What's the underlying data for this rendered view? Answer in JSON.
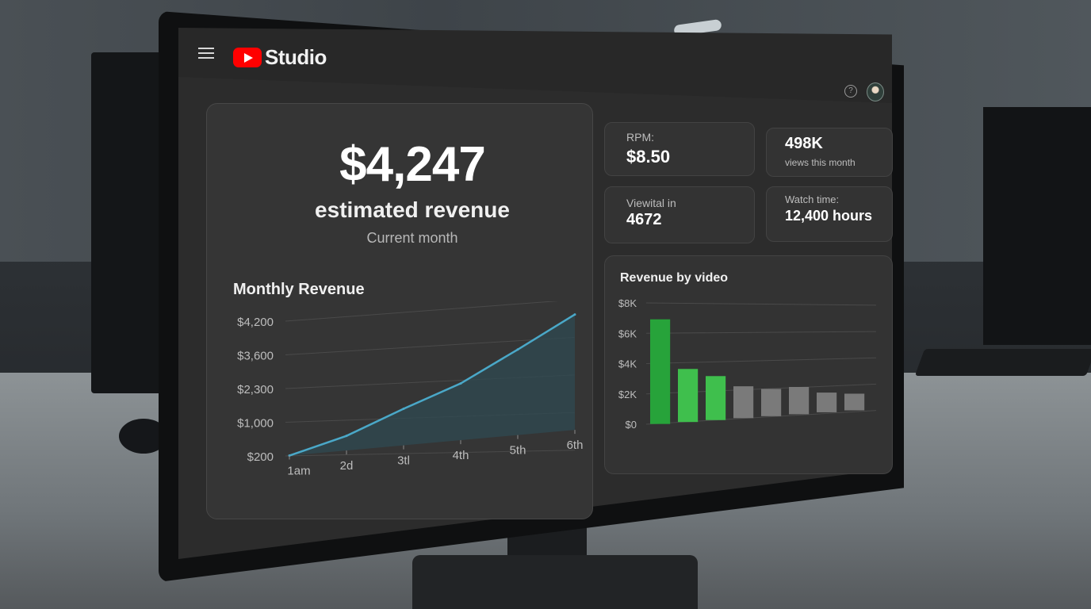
{
  "header": {
    "logo_text": "Studio",
    "menu_icon": "hamburger-icon",
    "help_icon_glyph": "?",
    "avatar": "avatar"
  },
  "revenue_card": {
    "amount": "$4,247",
    "label": "estimated revenue",
    "period": "Current month"
  },
  "stats": {
    "rpm": {
      "label": "RPM:",
      "value": "$8.50"
    },
    "views": {
      "value": "498K",
      "label": "views this month"
    },
    "third": {
      "label": "Viewital in",
      "value": "4672"
    },
    "watch_time": {
      "label": "Watch time:",
      "value": "12,400 hours"
    }
  },
  "chart_data": [
    {
      "type": "area",
      "title": "Monthly Revenue",
      "x": [
        "1am",
        "2d",
        "3tl",
        "4th",
        "5th",
        "6th"
      ],
      "y_ticks": [
        "$4,200",
        "$3,600",
        "$2,300",
        "$1,000",
        "$200"
      ],
      "series": [
        {
          "values": [
            200,
            700,
            1500,
            2300,
            3500,
            4850
          ]
        }
      ],
      "line_color": "#4aa8c8",
      "fill_color": "#2f4a52"
    },
    {
      "type": "bar",
      "title": "Revenue by video",
      "y_ticks": [
        "$8K",
        "$6K",
        "$4K",
        "$2K",
        "$0"
      ],
      "ylim": [
        0,
        8000
      ],
      "values": [
        6900,
        3500,
        2900,
        2100,
        1800,
        1800,
        1300,
        1100
      ],
      "colors": [
        "#27a33a",
        "#3fbf4d",
        "#3fbf4d",
        "#7a7a7a",
        "#7a7a7a",
        "#7a7a7a",
        "#7a7a7a",
        "#7a7a7a"
      ]
    }
  ]
}
